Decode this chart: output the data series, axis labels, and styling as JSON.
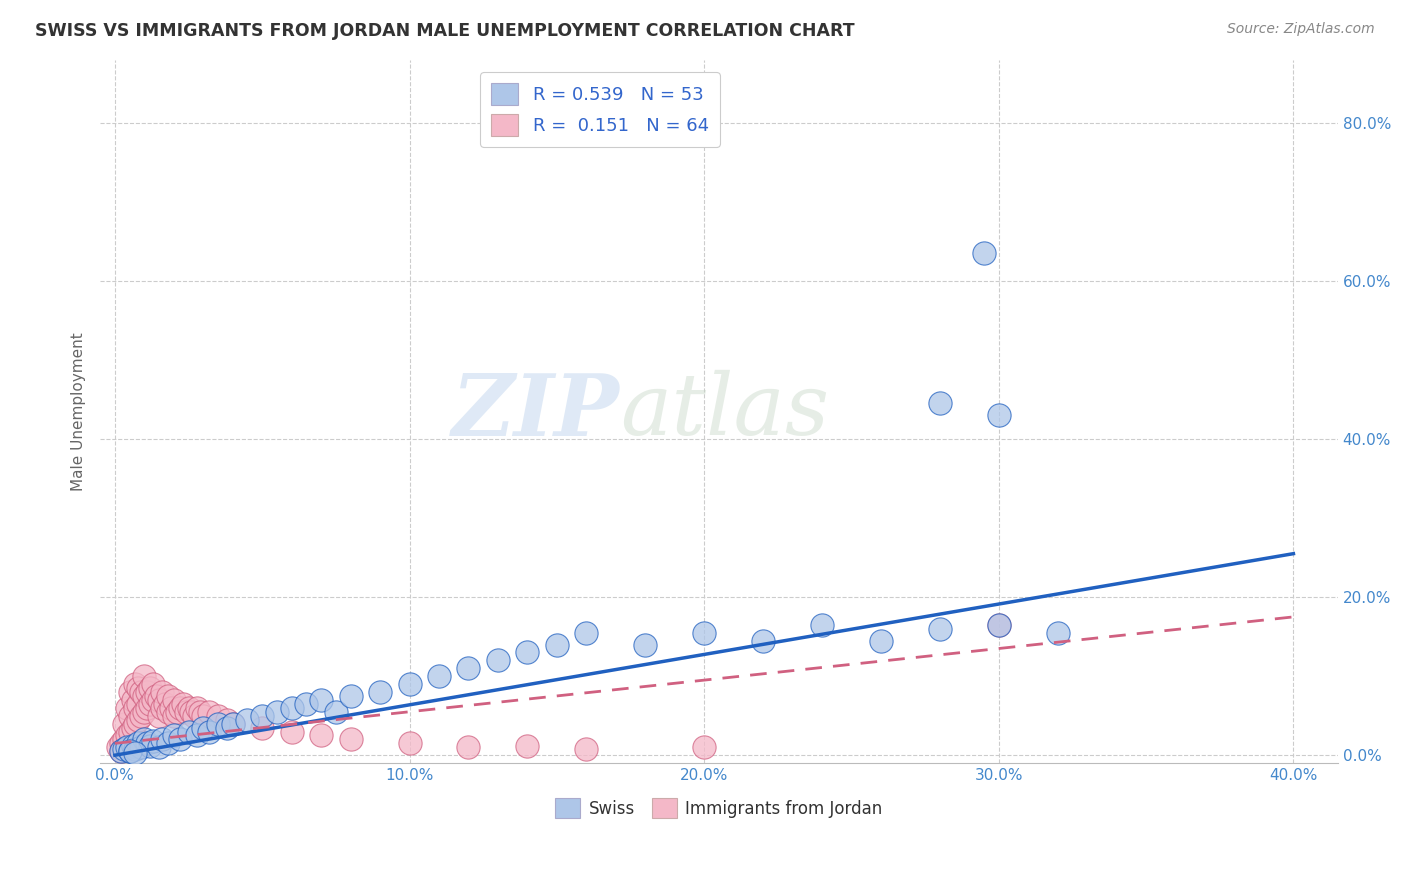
{
  "title": "SWISS VS IMMIGRANTS FROM JORDAN MALE UNEMPLOYMENT CORRELATION CHART",
  "source": "Source: ZipAtlas.com",
  "ylabel": "Male Unemployment",
  "xlim": [
    -0.005,
    0.415
  ],
  "ylim": [
    -0.01,
    0.88
  ],
  "xticks": [
    0.0,
    0.1,
    0.2,
    0.3,
    0.4
  ],
  "yticks": [
    0.0,
    0.2,
    0.4,
    0.6,
    0.8
  ],
  "xtick_labels": [
    "0.0%",
    "10.0%",
    "20.0%",
    "30.0%",
    "40.0%"
  ],
  "ytick_labels": [
    "0.0%",
    "20.0%",
    "40.0%",
    "60.0%",
    "80.0%"
  ],
  "swiss_color": "#aec6e8",
  "jordan_color": "#f4b8c8",
  "swiss_line_color": "#2060c0",
  "jordan_line_color": "#d06080",
  "swiss_R": 0.539,
  "swiss_N": 53,
  "jordan_R": 0.151,
  "jordan_N": 64,
  "legend_text_color": "#3366cc",
  "watermark_zip": "ZIP",
  "watermark_atlas": "atlas",
  "swiss_trend_x0": 0.0,
  "swiss_trend_x1": 0.4,
  "swiss_trend_y0": 0.0,
  "swiss_trend_y1": 0.255,
  "jordan_trend_x0": 0.0,
  "jordan_trend_x1": 0.4,
  "jordan_trend_y0": 0.015,
  "jordan_trend_y1": 0.175,
  "swiss_scatter_x": [
    0.002,
    0.003,
    0.004,
    0.005,
    0.006,
    0.007,
    0.008,
    0.009,
    0.01,
    0.011,
    0.012,
    0.013,
    0.015,
    0.016,
    0.018,
    0.02,
    0.022,
    0.025,
    0.028,
    0.03,
    0.032,
    0.035,
    0.038,
    0.04,
    0.045,
    0.05,
    0.055,
    0.06,
    0.065,
    0.07,
    0.075,
    0.08,
    0.09,
    0.1,
    0.11,
    0.12,
    0.13,
    0.14,
    0.15,
    0.16,
    0.18,
    0.2,
    0.22,
    0.24,
    0.26,
    0.28,
    0.3,
    0.32,
    0.28,
    0.3,
    0.295,
    0.005,
    0.007
  ],
  "swiss_scatter_y": [
    0.005,
    0.008,
    0.01,
    0.005,
    0.012,
    0.008,
    0.015,
    0.01,
    0.02,
    0.015,
    0.012,
    0.018,
    0.01,
    0.02,
    0.015,
    0.025,
    0.02,
    0.03,
    0.025,
    0.035,
    0.03,
    0.04,
    0.035,
    0.04,
    0.045,
    0.05,
    0.055,
    0.06,
    0.065,
    0.07,
    0.055,
    0.075,
    0.08,
    0.09,
    0.1,
    0.11,
    0.12,
    0.13,
    0.14,
    0.155,
    0.14,
    0.155,
    0.145,
    0.165,
    0.145,
    0.16,
    0.165,
    0.155,
    0.445,
    0.43,
    0.635,
    0.005,
    0.003
  ],
  "jordan_scatter_x": [
    0.001,
    0.002,
    0.003,
    0.003,
    0.004,
    0.004,
    0.005,
    0.005,
    0.005,
    0.006,
    0.006,
    0.007,
    0.007,
    0.007,
    0.008,
    0.008,
    0.008,
    0.009,
    0.009,
    0.01,
    0.01,
    0.01,
    0.011,
    0.011,
    0.012,
    0.012,
    0.013,
    0.013,
    0.014,
    0.015,
    0.015,
    0.016,
    0.016,
    0.017,
    0.018,
    0.018,
    0.019,
    0.02,
    0.02,
    0.021,
    0.022,
    0.023,
    0.024,
    0.025,
    0.026,
    0.027,
    0.028,
    0.029,
    0.03,
    0.032,
    0.035,
    0.038,
    0.04,
    0.05,
    0.06,
    0.07,
    0.08,
    0.1,
    0.12,
    0.14,
    0.16,
    0.2,
    0.3,
    0.002
  ],
  "jordan_scatter_y": [
    0.01,
    0.015,
    0.02,
    0.04,
    0.025,
    0.06,
    0.03,
    0.05,
    0.08,
    0.035,
    0.07,
    0.04,
    0.06,
    0.09,
    0.045,
    0.065,
    0.085,
    0.05,
    0.08,
    0.055,
    0.075,
    0.1,
    0.06,
    0.08,
    0.065,
    0.085,
    0.07,
    0.09,
    0.075,
    0.05,
    0.07,
    0.06,
    0.08,
    0.065,
    0.055,
    0.075,
    0.06,
    0.05,
    0.07,
    0.055,
    0.06,
    0.065,
    0.055,
    0.06,
    0.055,
    0.05,
    0.06,
    0.055,
    0.05,
    0.055,
    0.05,
    0.045,
    0.04,
    0.035,
    0.03,
    0.025,
    0.02,
    0.015,
    0.01,
    0.012,
    0.008,
    0.01,
    0.165,
    0.005
  ]
}
